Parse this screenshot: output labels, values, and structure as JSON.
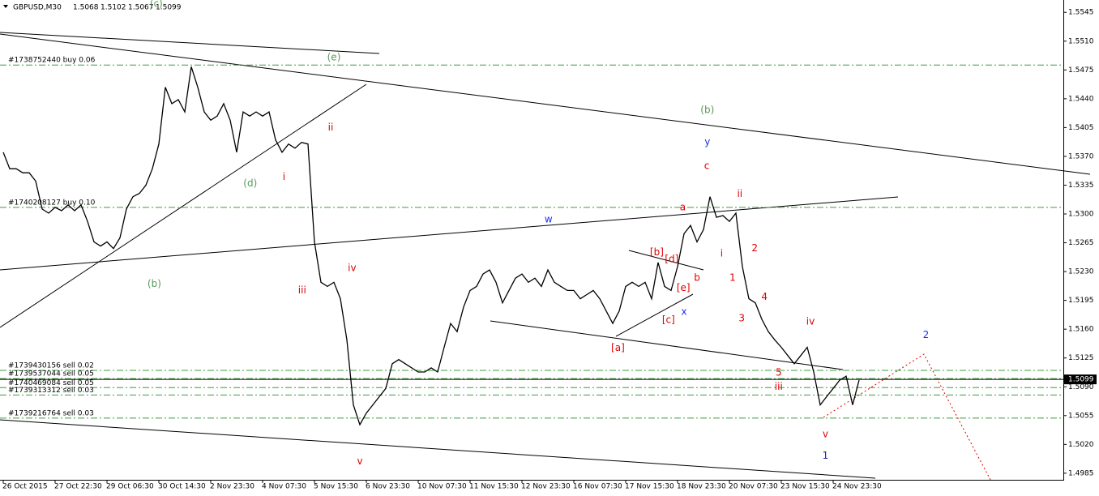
{
  "chart_data": {
    "type": "line",
    "title": "GBPUSD,M30",
    "ohlc": [
      1.5068,
      1.5102,
      1.5067,
      1.5099
    ],
    "color": "#000000",
    "x": [
      0,
      1,
      2,
      3,
      4,
      5,
      6,
      7,
      8,
      9,
      10,
      11,
      12,
      13,
      14,
      15,
      16,
      17,
      18,
      19,
      20,
      21,
      22,
      23,
      24,
      25,
      26,
      27,
      28,
      29,
      30,
      31,
      32,
      33,
      34,
      35,
      36,
      37,
      38,
      39,
      40,
      41,
      42,
      43,
      44,
      45,
      46,
      47,
      48,
      49,
      50,
      51,
      52,
      53,
      54,
      55,
      56,
      57,
      58,
      59,
      60,
      61,
      62,
      63,
      64,
      65,
      66,
      67,
      68,
      69,
      70,
      71,
      72,
      73,
      74,
      75,
      76,
      77,
      78,
      79,
      80,
      81,
      82,
      83,
      84,
      85,
      86,
      87,
      88,
      89,
      90,
      91,
      92,
      93,
      94,
      95,
      96,
      97,
      98,
      99,
      100,
      101,
      102,
      103,
      104,
      105,
      106,
      107,
      108,
      109,
      110,
      111,
      112,
      113,
      114,
      115,
      116,
      117,
      118,
      119,
      120,
      121,
      122,
      123,
      124,
      125,
      126,
      127,
      128,
      129,
      130,
      131,
      132
    ],
    "values": [
      1.5375,
      1.5355,
      1.5355,
      1.535,
      1.535,
      1.534,
      1.5306,
      1.5301,
      1.5308,
      1.5304,
      1.5311,
      1.5304,
      1.5311,
      1.5291,
      1.5266,
      1.5261,
      1.5266,
      1.5258,
      1.5271,
      1.5306,
      1.5321,
      1.5325,
      1.5335,
      1.5355,
      1.5385,
      1.5454,
      1.5434,
      1.5439,
      1.5424,
      1.5479,
      1.5454,
      1.5424,
      1.5414,
      1.5419,
      1.5434,
      1.5414,
      1.5375,
      1.5424,
      1.5419,
      1.5424,
      1.5419,
      1.5424,
      1.539,
      1.5375,
      1.5385,
      1.538,
      1.5387,
      1.5385,
      1.5266,
      1.5217,
      1.5212,
      1.5217,
      1.5197,
      1.5147,
      1.5068,
      1.5044,
      1.5058,
      1.5068,
      1.5078,
      1.5088,
      1.5118,
      1.5123,
      1.5118,
      1.5113,
      1.5108,
      1.5108,
      1.5113,
      1.5108,
      1.5138,
      1.5167,
      1.5157,
      1.5187,
      1.5207,
      1.5212,
      1.5227,
      1.5232,
      1.5217,
      1.5192,
      1.5207,
      1.5222,
      1.5227,
      1.5217,
      1.5222,
      1.5212,
      1.5232,
      1.5217,
      1.5212,
      1.5207,
      1.5207,
      1.5197,
      1.5202,
      1.5207,
      1.5197,
      1.5182,
      1.5167,
      1.5182,
      1.5212,
      1.5217,
      1.5212,
      1.5217,
      1.5197,
      1.5241,
      1.5212,
      1.5207,
      1.5236,
      1.5276,
      1.5286,
      1.5266,
      1.5281,
      1.5321,
      1.5296,
      1.5298,
      1.5291,
      1.5301,
      1.5236,
      1.5197,
      1.5192,
      1.5172,
      1.5157,
      1.5147,
      1.5138,
      1.5128,
      1.5118,
      1.5128,
      1.5138,
      1.5108,
      1.5068,
      1.5078,
      1.5088,
      1.5098,
      1.5103,
      1.5068,
      1.5098
    ],
    "xlim": [
      -0.5,
      163.5
    ],
    "ylim": [
      1.4977,
      1.556
    ],
    "xticks": [
      {
        "value": 0,
        "label": "26 Oct 2015"
      },
      {
        "value": 8,
        "label": "27 Oct 22:30"
      },
      {
        "value": 16,
        "label": "29 Oct 06:30"
      },
      {
        "value": 24,
        "label": "30 Oct 14:30"
      },
      {
        "value": 32,
        "label": "2 Nov 23:30"
      },
      {
        "value": 40,
        "label": "4 Nov 07:30"
      },
      {
        "value": 48,
        "label": "5 Nov 15:30"
      },
      {
        "value": 56,
        "label": "6 Nov 23:30"
      },
      {
        "value": 64,
        "label": "10 Nov 07:30"
      },
      {
        "value": 72,
        "label": "11 Nov 15:30"
      },
      {
        "value": 80,
        "label": "12 Nov 23:30"
      },
      {
        "value": 88,
        "label": "16 Nov 07:30"
      },
      {
        "value": 96,
        "label": "17 Nov 15:30"
      },
      {
        "value": 104,
        "label": "18 Nov 23:30"
      },
      {
        "value": 112,
        "label": "20 Nov 07:30"
      },
      {
        "value": 120,
        "label": "23 Nov 15:30"
      },
      {
        "value": 128,
        "label": "24 Nov 23:30"
      }
    ],
    "yticks": [
      1.5545,
      {
        "value": 1.551,
        "label": "1.5510"
      },
      1.5475,
      {
        "value": 1.544,
        "label": "1.5440"
      },
      1.5405,
      {
        "value": 1.537,
        "label": "1.5370"
      },
      1.5335,
      {
        "value": 1.53,
        "label": "1.5300"
      },
      1.5265,
      {
        "value": 1.523,
        "label": "1.5230"
      },
      1.5195,
      {
        "value": 1.516,
        "label": "1.5160"
      },
      1.5125,
      {
        "value": 1.509,
        "label": "1.5090"
      },
      1.5055,
      {
        "value": 1.502,
        "label": "1.5020"
      },
      1.4985
    ],
    "last_price": {
      "value": 1.5099,
      "label": "1.5099"
    },
    "order_color": "#3c9c3c",
    "order_lines": [
      {
        "label": "#1738752440 buy 0.06",
        "value": 1.5481
      },
      {
        "label": "#1740208127 buy 0.10",
        "value": 1.5308
      },
      {
        "label": "#1739430156 sell 0.02",
        "value": 1.511
      },
      {
        "label": "#1739537044 sell 0.05",
        "value": 1.51
      },
      {
        "label": "#1740469084 sell 0.05",
        "value": 1.5089
      },
      {
        "label": "#1739313312 sell 0.03",
        "value": 1.508
      },
      {
        "label": "#1739216764 sell 0.03",
        "value": 1.5052
      }
    ],
    "annotations": [
      {
        "text": "(c)",
        "x": 23.6,
        "y": 1.5555,
        "color": "#5a9a5a"
      },
      {
        "text": "(e)",
        "x": 51,
        "y": 1.549,
        "color": "#5a9a5a"
      },
      {
        "text": "(b)",
        "x": 108.6,
        "y": 1.5426,
        "color": "#5a9a5a"
      },
      {
        "text": "(d)",
        "x": 38.1,
        "y": 1.5337,
        "color": "#5a9a5a"
      },
      {
        "text": "(b)",
        "x": 23.3,
        "y": 1.5215,
        "color": "#5a9a5a"
      },
      {
        "text": "y",
        "x": 108.6,
        "y": 1.5387,
        "color": "#1e32e6"
      },
      {
        "text": "w",
        "x": 84.1,
        "y": 1.5293,
        "color": "#1e32e6"
      },
      {
        "text": "x",
        "x": 105,
        "y": 1.5181,
        "color": "#1e32e6"
      },
      {
        "text": "2",
        "x": 142.3,
        "y": 1.5153,
        "color": "#1e32e6"
      },
      {
        "text": "1",
        "x": 126.8,
        "y": 1.5006,
        "color": "#1e1e9c"
      },
      {
        "text": "ii",
        "x": 50.5,
        "y": 1.5405,
        "color": "#e00000"
      },
      {
        "text": "i",
        "x": 43.3,
        "y": 1.5345,
        "color": "#e00000"
      },
      {
        "text": "iii",
        "x": 46.1,
        "y": 1.5207,
        "color": "#e00000"
      },
      {
        "text": "iv",
        "x": 53.8,
        "y": 1.5234,
        "color": "#e00000"
      },
      {
        "text": "v",
        "x": 55,
        "y": 1.4999,
        "color": "#e00000"
      },
      {
        "text": "c",
        "x": 108.5,
        "y": 1.5358,
        "color": "#e00000"
      },
      {
        "text": "a",
        "x": 104.8,
        "y": 1.5308,
        "color": "#e00000"
      },
      {
        "text": "ii",
        "x": 113.6,
        "y": 1.5324,
        "color": "#e00000"
      },
      {
        "text": "i",
        "x": 110.8,
        "y": 1.5252,
        "color": "#e00000"
      },
      {
        "text": "2",
        "x": 115.9,
        "y": 1.5258,
        "color": "#e00000"
      },
      {
        "text": "1",
        "x": 112.5,
        "y": 1.5222,
        "color": "#e00000"
      },
      {
        "text": "[b]",
        "x": 100.8,
        "y": 1.5253,
        "color": "#e00000"
      },
      {
        "text": "[d]",
        "x": 103.1,
        "y": 1.5245,
        "color": "#e00000"
      },
      {
        "text": "[e]",
        "x": 104.9,
        "y": 1.521,
        "color": "#e00000"
      },
      {
        "text": "b",
        "x": 107,
        "y": 1.5222,
        "color": "#e00000"
      },
      {
        "text": "[c]",
        "x": 102.6,
        "y": 1.5171,
        "color": "#e00000"
      },
      {
        "text": "[a]",
        "x": 94.8,
        "y": 1.5137,
        "color": "#e00000"
      },
      {
        "text": "4",
        "x": 117.4,
        "y": 1.5199,
        "color": "#e00000"
      },
      {
        "text": "3",
        "x": 113.9,
        "y": 1.5173,
        "color": "#e00000"
      },
      {
        "text": "iv",
        "x": 124.5,
        "y": 1.5169,
        "color": "#e00000"
      },
      {
        "text": "5",
        "x": 119.6,
        "y": 1.5107,
        "color": "#e00000"
      },
      {
        "text": "iii",
        "x": 119.6,
        "y": 1.509,
        "color": "#e00000"
      },
      {
        "text": "v",
        "x": 126.8,
        "y": 1.5032,
        "color": "#e00000"
      }
    ]
  }
}
